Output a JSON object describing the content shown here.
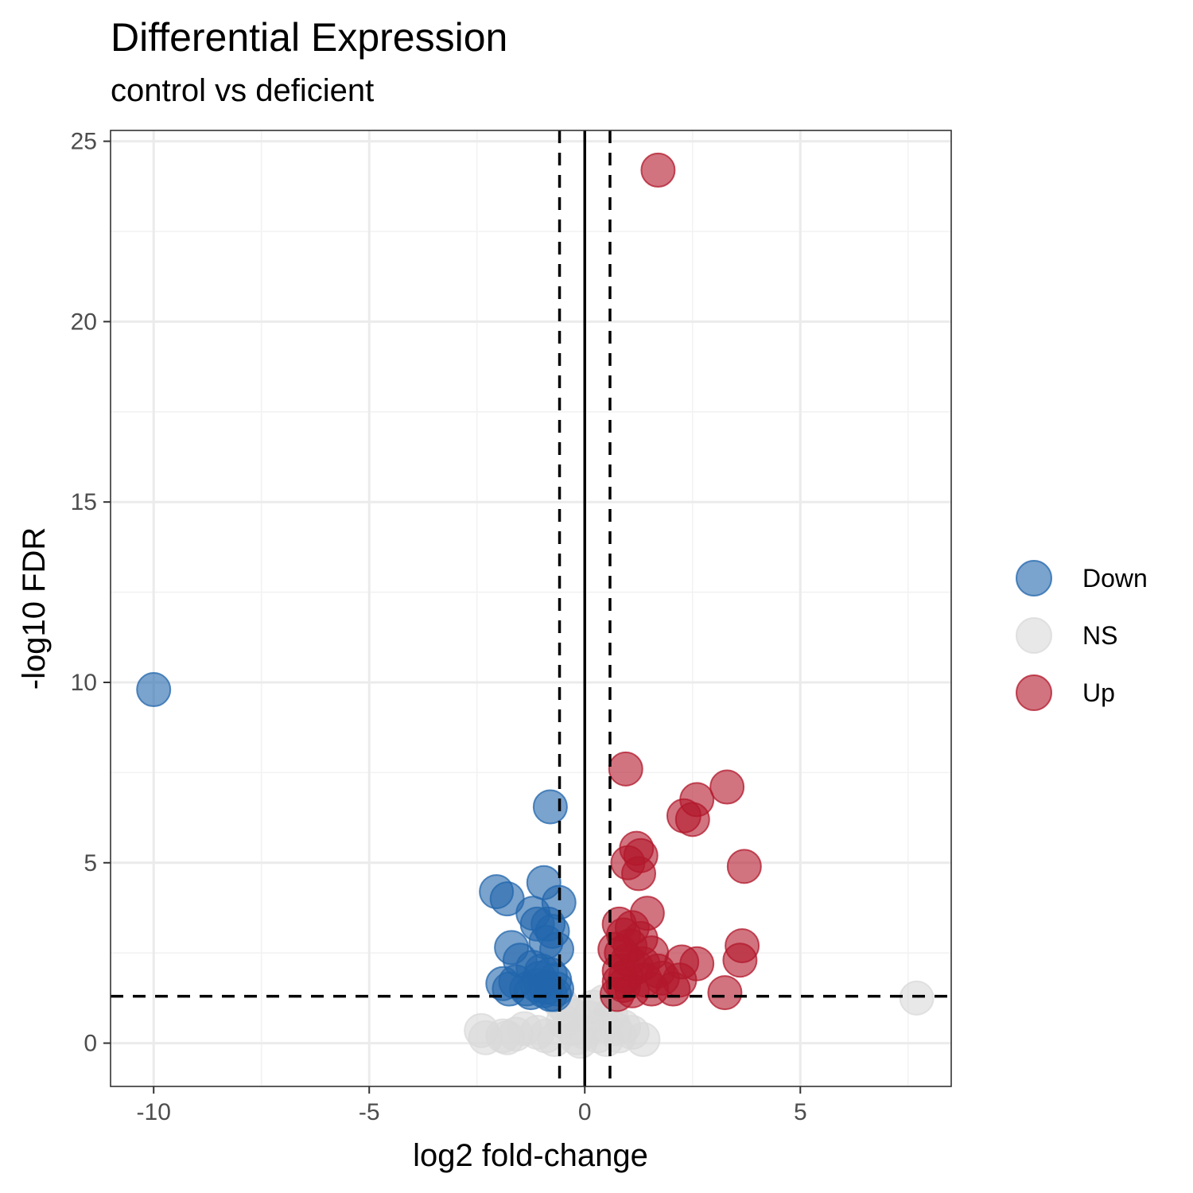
{
  "chart_data": {
    "type": "scatter",
    "title": "Differential Expression",
    "subtitle": "control vs deficient",
    "xlabel": "log2 fold-change",
    "ylabel": "-log10 FDR",
    "xlim": [
      -11,
      8.5
    ],
    "ylim": [
      -1.2,
      25.3
    ],
    "x_ticks": [
      -10,
      -5,
      0,
      5
    ],
    "x_tick_labels": [
      "-10",
      "-5",
      "0",
      "5"
    ],
    "y_ticks": [
      0,
      5,
      10,
      15,
      20,
      25
    ],
    "y_tick_labels": [
      "0",
      "5",
      "10",
      "15",
      "20",
      "25"
    ],
    "grid": true,
    "thresholds": {
      "fc_lines": [
        -0.585,
        0.585
      ],
      "fdr_line": 1.3,
      "zero_line": 0
    },
    "legend": {
      "position": "right",
      "entries": [
        "Down",
        "NS",
        "Up"
      ]
    },
    "colors": {
      "Down": "#2166ac",
      "NS": "#d9d9d9",
      "Up": "#b2182b"
    },
    "series": [
      {
        "name": "Down",
        "points": [
          [
            -10.0,
            9.8
          ],
          [
            -0.8,
            6.55
          ],
          [
            -0.95,
            4.45
          ],
          [
            -2.05,
            4.2
          ],
          [
            -1.8,
            4.0
          ],
          [
            -0.6,
            3.9
          ],
          [
            -1.2,
            3.6
          ],
          [
            -1.1,
            3.3
          ],
          [
            -0.85,
            3.3
          ],
          [
            -0.75,
            3.1
          ],
          [
            -1.7,
            2.65
          ],
          [
            -0.9,
            2.8
          ],
          [
            -0.65,
            2.6
          ],
          [
            -1.5,
            2.3
          ],
          [
            -1.2,
            2.1
          ],
          [
            -1.0,
            2.0
          ],
          [
            -0.8,
            1.9
          ],
          [
            -1.9,
            1.65
          ],
          [
            -1.6,
            1.7
          ],
          [
            -1.35,
            1.5
          ],
          [
            -1.75,
            1.5
          ],
          [
            -1.1,
            1.6
          ],
          [
            -0.7,
            1.75
          ],
          [
            -0.65,
            1.5
          ],
          [
            -0.95,
            1.45
          ],
          [
            -1.25,
            1.4
          ],
          [
            -0.8,
            1.35
          ],
          [
            -0.7,
            1.35
          ],
          [
            -1.05,
            1.8
          ],
          [
            -0.9,
            1.55
          ]
        ]
      },
      {
        "name": "NS",
        "points": [
          [
            7.7,
            1.25
          ],
          [
            -2.4,
            0.35
          ],
          [
            -2.3,
            0.15
          ],
          [
            -1.9,
            0.2
          ],
          [
            -1.8,
            0.15
          ],
          [
            -1.6,
            0.25
          ],
          [
            -1.4,
            0.4
          ],
          [
            -1.1,
            0.3
          ],
          [
            -0.9,
            0.2
          ],
          [
            -0.7,
            0.1
          ],
          [
            -0.5,
            0.6
          ],
          [
            -0.4,
            0.9
          ],
          [
            -0.3,
            0.4
          ],
          [
            -0.2,
            0.15
          ],
          [
            -0.1,
            0.05
          ],
          [
            0.0,
            0.3
          ],
          [
            0.1,
            0.7
          ],
          [
            0.2,
            1.0
          ],
          [
            0.3,
            0.2
          ],
          [
            0.4,
            0.5
          ],
          [
            0.5,
            0.1
          ],
          [
            0.6,
            0.8
          ],
          [
            0.7,
            0.4
          ],
          [
            0.8,
            0.2
          ],
          [
            0.9,
            0.45
          ],
          [
            1.1,
            0.3
          ],
          [
            1.35,
            0.1
          ],
          [
            -0.55,
            1.1
          ],
          [
            0.45,
            1.15
          ],
          [
            -0.25,
            0.75
          ]
        ]
      },
      {
        "name": "Up",
        "points": [
          [
            1.7,
            24.2
          ],
          [
            0.95,
            7.6
          ],
          [
            3.3,
            7.1
          ],
          [
            2.6,
            6.75
          ],
          [
            2.3,
            6.3
          ],
          [
            2.5,
            6.2
          ],
          [
            1.2,
            5.4
          ],
          [
            1.3,
            5.2
          ],
          [
            1.0,
            5.0
          ],
          [
            1.25,
            4.7
          ],
          [
            3.7,
            4.9
          ],
          [
            1.45,
            3.6
          ],
          [
            0.8,
            3.3
          ],
          [
            1.1,
            3.2
          ],
          [
            0.9,
            3.0
          ],
          [
            1.3,
            2.9
          ],
          [
            3.65,
            2.7
          ],
          [
            0.85,
            2.5
          ],
          [
            1.55,
            2.5
          ],
          [
            3.6,
            2.3
          ],
          [
            2.25,
            2.25
          ],
          [
            2.6,
            2.2
          ],
          [
            1.0,
            2.3
          ],
          [
            0.8,
            2.0
          ],
          [
            1.2,
            2.1
          ],
          [
            1.7,
            2.0
          ],
          [
            2.2,
            1.75
          ],
          [
            2.05,
            1.5
          ],
          [
            3.25,
            1.4
          ],
          [
            1.55,
            1.5
          ],
          [
            0.9,
            1.6
          ],
          [
            1.1,
            1.45
          ],
          [
            0.75,
            1.35
          ],
          [
            1.4,
            1.75
          ],
          [
            1.8,
            1.8
          ],
          [
            0.95,
            1.85
          ],
          [
            1.35,
            2.2
          ],
          [
            0.7,
            2.6
          ],
          [
            1.05,
            2.7
          ],
          [
            0.8,
            1.7
          ]
        ]
      }
    ]
  }
}
